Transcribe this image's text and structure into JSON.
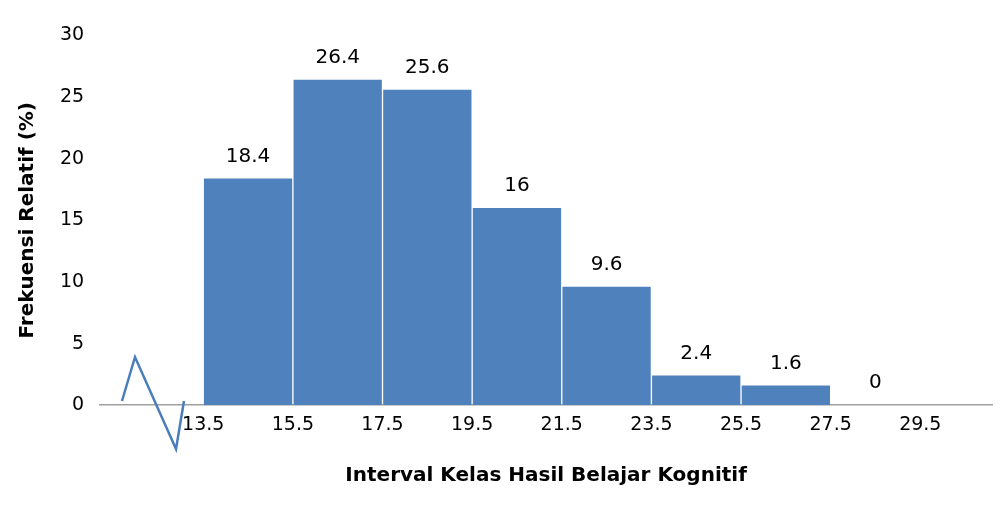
{
  "chart_data": {
    "type": "histogram",
    "xlabel": "Interval Kelas Hasil Belajar Kognitif",
    "ylabel": "Frekuensi Relatif (%)",
    "bins": [
      13.5,
      15.5,
      17.5,
      19.5,
      21.5,
      23.5,
      25.5,
      27.5,
      29.5
    ],
    "values": [
      18.4,
      26.4,
      25.6,
      16,
      9.6,
      2.4,
      1.6,
      0
    ],
    "color": "#4f81bd",
    "xlim": [
      11.2,
      31.1
    ],
    "xticks": [
      13.5,
      15.5,
      17.5,
      19.5,
      21.5,
      23.5,
      25.5,
      27.5,
      29.5
    ],
    "ylim": [
      0,
      30
    ],
    "yticks": [
      0,
      5,
      10,
      15,
      20,
      25,
      30
    ],
    "grid": false,
    "legend": false,
    "data_labels": true
  }
}
